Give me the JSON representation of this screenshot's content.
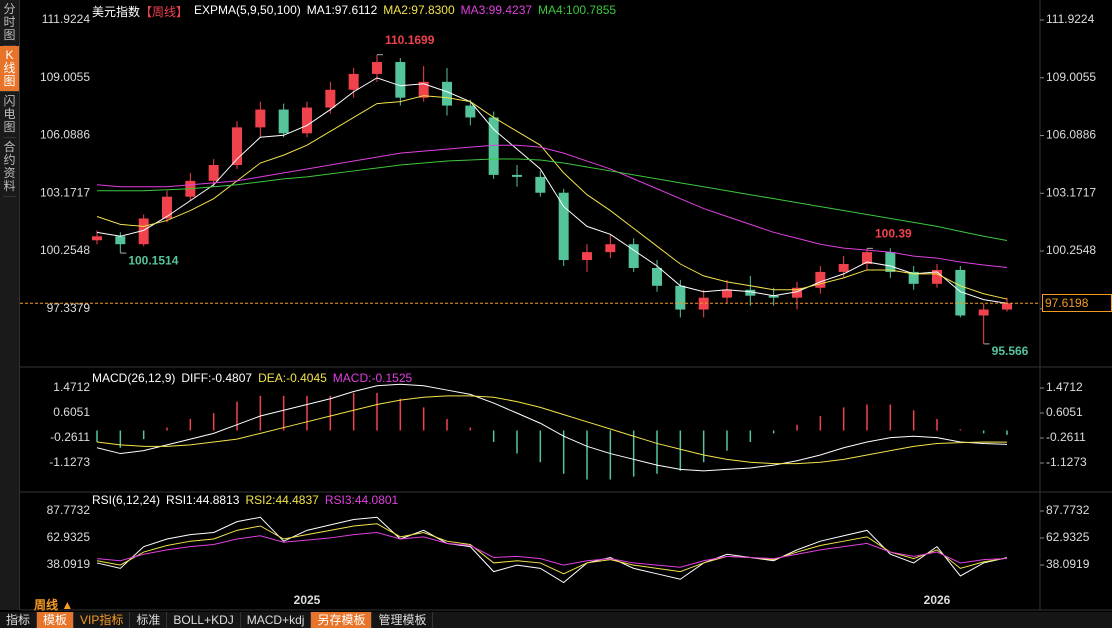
{
  "sidebar": [
    "分时图",
    "K线图",
    "闪电图",
    "合约资料"
  ],
  "toolbar": {
    "period": "周线",
    "tabs": [
      "指标",
      "模板",
      "VIP指标",
      "标准",
      "BOLL+KDJ",
      "MACD+kdj",
      "另存模板",
      "管理模板"
    ]
  },
  "chart_data": [
    {
      "type": "candlestick",
      "title": "美元指数",
      "period": "【周线】",
      "indicator": "EXPMA(5,9,50,100)",
      "categories": [
        null,
        null,
        null,
        null,
        null,
        null,
        null,
        null,
        null,
        "2025",
        null,
        null,
        null,
        null,
        null,
        null,
        null,
        null,
        null,
        null,
        null,
        null,
        null,
        null,
        null,
        null,
        null,
        null,
        null,
        null,
        null,
        null,
        null,
        null,
        null,
        null,
        "2026",
        null,
        null,
        null
      ],
      "open": [
        100.8,
        101.0,
        100.6,
        101.9,
        103.0,
        103.8,
        104.6,
        106.5,
        107.4,
        106.2,
        107.5,
        108.4,
        109.2,
        109.8,
        108.0,
        108.8,
        107.6,
        107.0,
        104.1,
        104.0,
        103.2,
        99.8,
        100.2,
        100.6,
        99.4,
        98.5,
        97.3,
        97.9,
        98.3,
        98.0,
        97.9,
        98.4,
        99.2,
        99.6,
        100.2,
        99.2,
        98.6,
        99.3,
        97.0,
        97.3
      ],
      "close": [
        101.0,
        100.6,
        101.9,
        103.0,
        103.8,
        104.6,
        106.5,
        107.4,
        106.2,
        107.5,
        108.4,
        109.2,
        109.8,
        108.0,
        108.8,
        107.6,
        107.0,
        104.1,
        104.0,
        103.2,
        99.8,
        100.2,
        100.6,
        99.4,
        98.5,
        97.3,
        97.9,
        98.3,
        98.0,
        97.9,
        98.4,
        99.2,
        99.6,
        100.2,
        99.2,
        98.6,
        99.3,
        97.0,
        97.3,
        97.62
      ],
      "high": [
        101.3,
        101.2,
        102.1,
        103.3,
        104.2,
        104.9,
        106.8,
        107.8,
        107.7,
        107.8,
        108.8,
        109.5,
        110.1699,
        110.0,
        109.6,
        109.5,
        107.9,
        107.3,
        104.6,
        104.3,
        103.4,
        100.6,
        101.1,
        100.9,
        99.8,
        98.8,
        98.3,
        98.8,
        99.0,
        98.4,
        98.7,
        99.5,
        100.0,
        100.39,
        100.4,
        99.5,
        99.6,
        99.5,
        97.6,
        97.9
      ],
      "low": [
        100.6,
        100.1514,
        100.5,
        101.7,
        102.8,
        103.5,
        104.4,
        106.0,
        106.0,
        106.0,
        107.2,
        108.0,
        108.8,
        107.6,
        107.8,
        107.1,
        106.6,
        103.9,
        103.5,
        103.0,
        99.5,
        99.2,
        99.9,
        99.2,
        98.2,
        96.9,
        96.9,
        97.6,
        97.5,
        97.5,
        97.3,
        98.1,
        98.9,
        99.3,
        98.9,
        98.3,
        98.4,
        96.9,
        95.566,
        97.2
      ],
      "up_color": "#f0424c",
      "down_color": "#55c49b",
      "ylim": [
        94.5,
        112.68
      ],
      "yticks": [
        111.9224,
        109.0055,
        106.0886,
        103.1717,
        100.2548,
        97.3379
      ],
      "series": [
        {
          "name": "MA1:97.6112",
          "color": "#ffffff",
          "values": [
            101.2,
            101.0,
            101.3,
            102.0,
            102.8,
            103.6,
            104.9,
            106.0,
            106.1,
            106.6,
            107.4,
            108.3,
            109.0,
            108.6,
            108.7,
            108.3,
            107.8,
            106.4,
            105.4,
            104.4,
            102.5,
            101.5,
            101.1,
            100.3,
            99.5,
            98.5,
            98.2,
            98.3,
            98.2,
            98.0,
            98.2,
            98.7,
            99.1,
            99.7,
            99.5,
            99.1,
            99.2,
            98.2,
            97.8,
            97.6112
          ]
        },
        {
          "name": "MA2:97.8300",
          "color": "#f2e34a",
          "values": [
            102.0,
            101.6,
            101.5,
            101.8,
            102.3,
            102.9,
            103.8,
            104.7,
            105.1,
            105.6,
            106.3,
            107.0,
            107.7,
            107.8,
            108.1,
            108.0,
            107.8,
            107.0,
            106.3,
            105.6,
            104.2,
            103.1,
            102.3,
            101.4,
            100.5,
            99.6,
            99.0,
            98.7,
            98.5,
            98.3,
            98.3,
            98.6,
            98.9,
            99.3,
            99.3,
            99.1,
            99.1,
            98.5,
            98.1,
            97.83
          ]
        },
        {
          "name": "MA3:99.4237",
          "color": "#e040e0",
          "values": [
            103.6,
            103.5,
            103.5,
            103.5,
            103.6,
            103.7,
            103.8,
            104.0,
            104.2,
            104.4,
            104.6,
            104.8,
            105.0,
            105.2,
            105.3,
            105.4,
            105.5,
            105.6,
            105.6,
            105.5,
            105.2,
            104.8,
            104.4,
            103.9,
            103.4,
            102.9,
            102.4,
            102.0,
            101.6,
            101.2,
            100.9,
            100.6,
            100.4,
            100.3,
            100.2,
            100.0,
            99.9,
            99.7,
            99.55,
            99.4237
          ]
        },
        {
          "name": "MA4:100.7855",
          "color": "#3cc83c",
          "values": [
            103.3,
            103.3,
            103.3,
            103.35,
            103.4,
            103.5,
            103.6,
            103.75,
            103.9,
            104.0,
            104.15,
            104.3,
            104.45,
            104.6,
            104.7,
            104.8,
            104.85,
            104.9,
            104.9,
            104.85,
            104.7,
            104.5,
            104.3,
            104.1,
            103.9,
            103.7,
            103.5,
            103.3,
            103.1,
            102.9,
            102.7,
            102.5,
            102.3,
            102.1,
            101.9,
            101.7,
            101.5,
            101.25,
            101.0,
            100.7855
          ]
        }
      ],
      "annotations": [
        110.1699,
        100.1514,
        100.39,
        95.566
      ],
      "last_price": 97.6198,
      "last_price_color": "#f59a23"
    },
    {
      "type": "macd",
      "title": "MACD(26,12,9)",
      "ylim": [
        -2.063,
        2.095
      ],
      "yticks": [
        1.4712,
        0.6051,
        -0.2611,
        -1.1273
      ],
      "series": [
        {
          "name": "DIFF:-0.4807",
          "color": "#ffffff",
          "values": [
            -0.6,
            -0.8,
            -0.7,
            -0.5,
            -0.3,
            -0.1,
            0.2,
            0.5,
            0.7,
            0.9,
            1.1,
            1.35,
            1.55,
            1.6,
            1.55,
            1.4,
            1.25,
            0.95,
            0.6,
            0.25,
            -0.2,
            -0.55,
            -0.8,
            -1.0,
            -1.2,
            -1.35,
            -1.4,
            -1.35,
            -1.3,
            -1.2,
            -1.05,
            -0.85,
            -0.6,
            -0.4,
            -0.25,
            -0.2,
            -0.25,
            -0.4,
            -0.45,
            -0.4807
          ]
        },
        {
          "name": "DEA:-0.4045",
          "color": "#f2e34a",
          "values": [
            -0.4,
            -0.5,
            -0.55,
            -0.55,
            -0.5,
            -0.4,
            -0.3,
            -0.1,
            0.1,
            0.3,
            0.5,
            0.7,
            0.9,
            1.05,
            1.15,
            1.2,
            1.2,
            1.15,
            1.0,
            0.8,
            0.55,
            0.3,
            0.05,
            -0.2,
            -0.45,
            -0.65,
            -0.85,
            -1.0,
            -1.1,
            -1.15,
            -1.15,
            -1.1,
            -1.0,
            -0.85,
            -0.7,
            -0.55,
            -0.45,
            -0.42,
            -0.4,
            -0.4045
          ]
        }
      ],
      "histogram": {
        "name": "MACD:-0.1525",
        "color": "#e040e0",
        "up_color": "#f0424c",
        "down_color": "#55c49b",
        "values": [
          -0.4,
          -0.6,
          -0.3,
          0.1,
          0.4,
          0.6,
          1.0,
          1.2,
          1.2,
          1.2,
          1.2,
          1.3,
          1.3,
          1.1,
          0.8,
          0.4,
          0.1,
          -0.4,
          -0.8,
          -1.1,
          -1.5,
          -1.7,
          -1.7,
          -1.6,
          -1.5,
          -1.4,
          -1.1,
          -0.7,
          -0.4,
          -0.1,
          0.2,
          0.5,
          0.8,
          0.9,
          0.9,
          0.7,
          0.4,
          0.04,
          -0.1,
          -0.1525
        ]
      }
    },
    {
      "type": "rsi",
      "title": "RSI(6,12,24)",
      "ylim": [
        10.5,
        102.5
      ],
      "yticks": [
        87.7732,
        62.9325,
        38.0919
      ],
      "series": [
        {
          "name": "RSI1:44.8813",
          "color": "#ffffff",
          "values": [
            40,
            35,
            55,
            62,
            66,
            68,
            78,
            82,
            60,
            70,
            75,
            80,
            82,
            62,
            70,
            58,
            55,
            32,
            38,
            35,
            22,
            40,
            45,
            35,
            30,
            25,
            40,
            48,
            45,
            42,
            52,
            60,
            65,
            70,
            48,
            40,
            55,
            28,
            40,
            44.8813
          ]
        },
        {
          "name": "RSI2:44.4837",
          "color": "#f2e34a",
          "values": [
            42,
            38,
            50,
            56,
            60,
            62,
            70,
            74,
            62,
            66,
            70,
            74,
            76,
            64,
            68,
            60,
            57,
            40,
            42,
            40,
            30,
            40,
            43,
            38,
            35,
            32,
            40,
            46,
            45,
            43,
            50,
            56,
            60,
            64,
            50,
            44,
            52,
            35,
            41,
            44.4837
          ]
        },
        {
          "name": "RSI3:44.0801",
          "color": "#e040e0",
          "values": [
            44,
            42,
            48,
            52,
            55,
            57,
            62,
            65,
            59,
            61,
            63,
            66,
            68,
            62,
            64,
            58,
            56,
            45,
            46,
            44,
            38,
            42,
            44,
            40,
            38,
            36,
            42,
            46,
            45,
            44,
            48,
            52,
            55,
            58,
            50,
            46,
            50,
            40,
            43,
            44.0801
          ]
        }
      ]
    }
  ]
}
